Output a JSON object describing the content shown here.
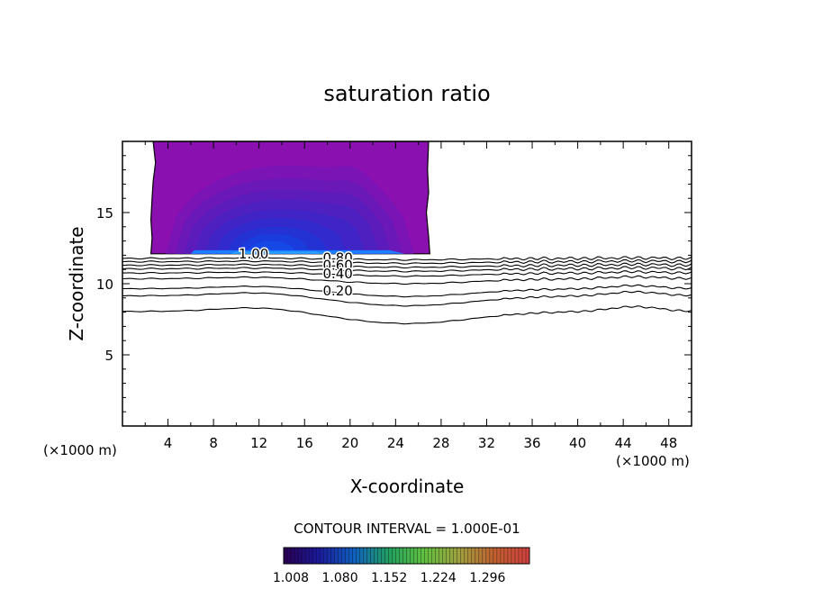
{
  "chart_data": {
    "type": "contour",
    "title": "saturation ratio",
    "xlabel": "X-coordinate",
    "ylabel": "Z-coordinate",
    "x_unit_left": "(×1000 m)",
    "x_unit_right": "(×1000 m)",
    "xlim": [
      0,
      50
    ],
    "ylim": [
      0,
      20
    ],
    "x_ticks": [
      4,
      8,
      12,
      16,
      20,
      24,
      28,
      32,
      36,
      40,
      44,
      48
    ],
    "y_ticks": [
      5,
      10,
      15
    ],
    "contour_interval_text": "CONTOUR INTERVAL = 1.000E-01",
    "filled_region": {
      "x_range": [
        2.7,
        27.0
      ],
      "z_range": [
        12.1,
        20
      ]
    },
    "contour_labels": [
      {
        "text": "1.00",
        "x": 10.2,
        "z": 12.1
      },
      {
        "text": "0.80",
        "x": 17.6,
        "z": 11.8
      },
      {
        "text": "0.60",
        "x": 17.6,
        "z": 11.3
      },
      {
        "text": "0.40",
        "x": 17.6,
        "z": 10.7
      },
      {
        "text": "0.20",
        "x": 17.6,
        "z": 9.5
      }
    ],
    "colorbar": {
      "tick_labels": [
        "1.008",
        "1.080",
        "1.152",
        "1.224",
        "1.296"
      ],
      "colors": [
        "#2a0052",
        "#1a1a9a",
        "#1060c0",
        "#22a060",
        "#60c040",
        "#a0a040",
        "#c06030",
        "#d04040"
      ]
    },
    "colors": {
      "fill_base": "#8a10b0",
      "fill_mid": "#5020b8",
      "fill_core": "#1a40e0",
      "fill_peak": "#1a80ff",
      "line": "#000000"
    }
  }
}
